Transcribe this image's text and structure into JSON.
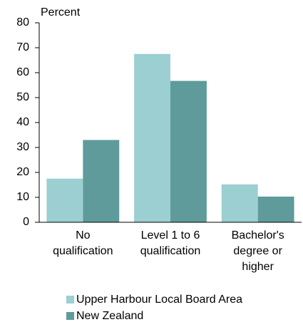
{
  "chart_data": {
    "type": "bar",
    "y_label": "Percent",
    "categories": [
      [
        "No",
        "qualification"
      ],
      [
        "Level 1 to 6",
        "qualification"
      ],
      [
        "Bachelor's",
        "degree or",
        "higher"
      ]
    ],
    "series": [
      {
        "name": "Upper Harbour Local Board Area",
        "color": "#9bcfd1",
        "values": [
          17.5,
          67.5,
          15.2
        ]
      },
      {
        "name": "New Zealand",
        "color": "#5f9b9b",
        "values": [
          33,
          56.7,
          10.3
        ]
      }
    ],
    "ylim": [
      0,
      80
    ],
    "yticks": [
      0,
      10,
      20,
      30,
      40,
      50,
      60,
      70,
      80
    ]
  }
}
